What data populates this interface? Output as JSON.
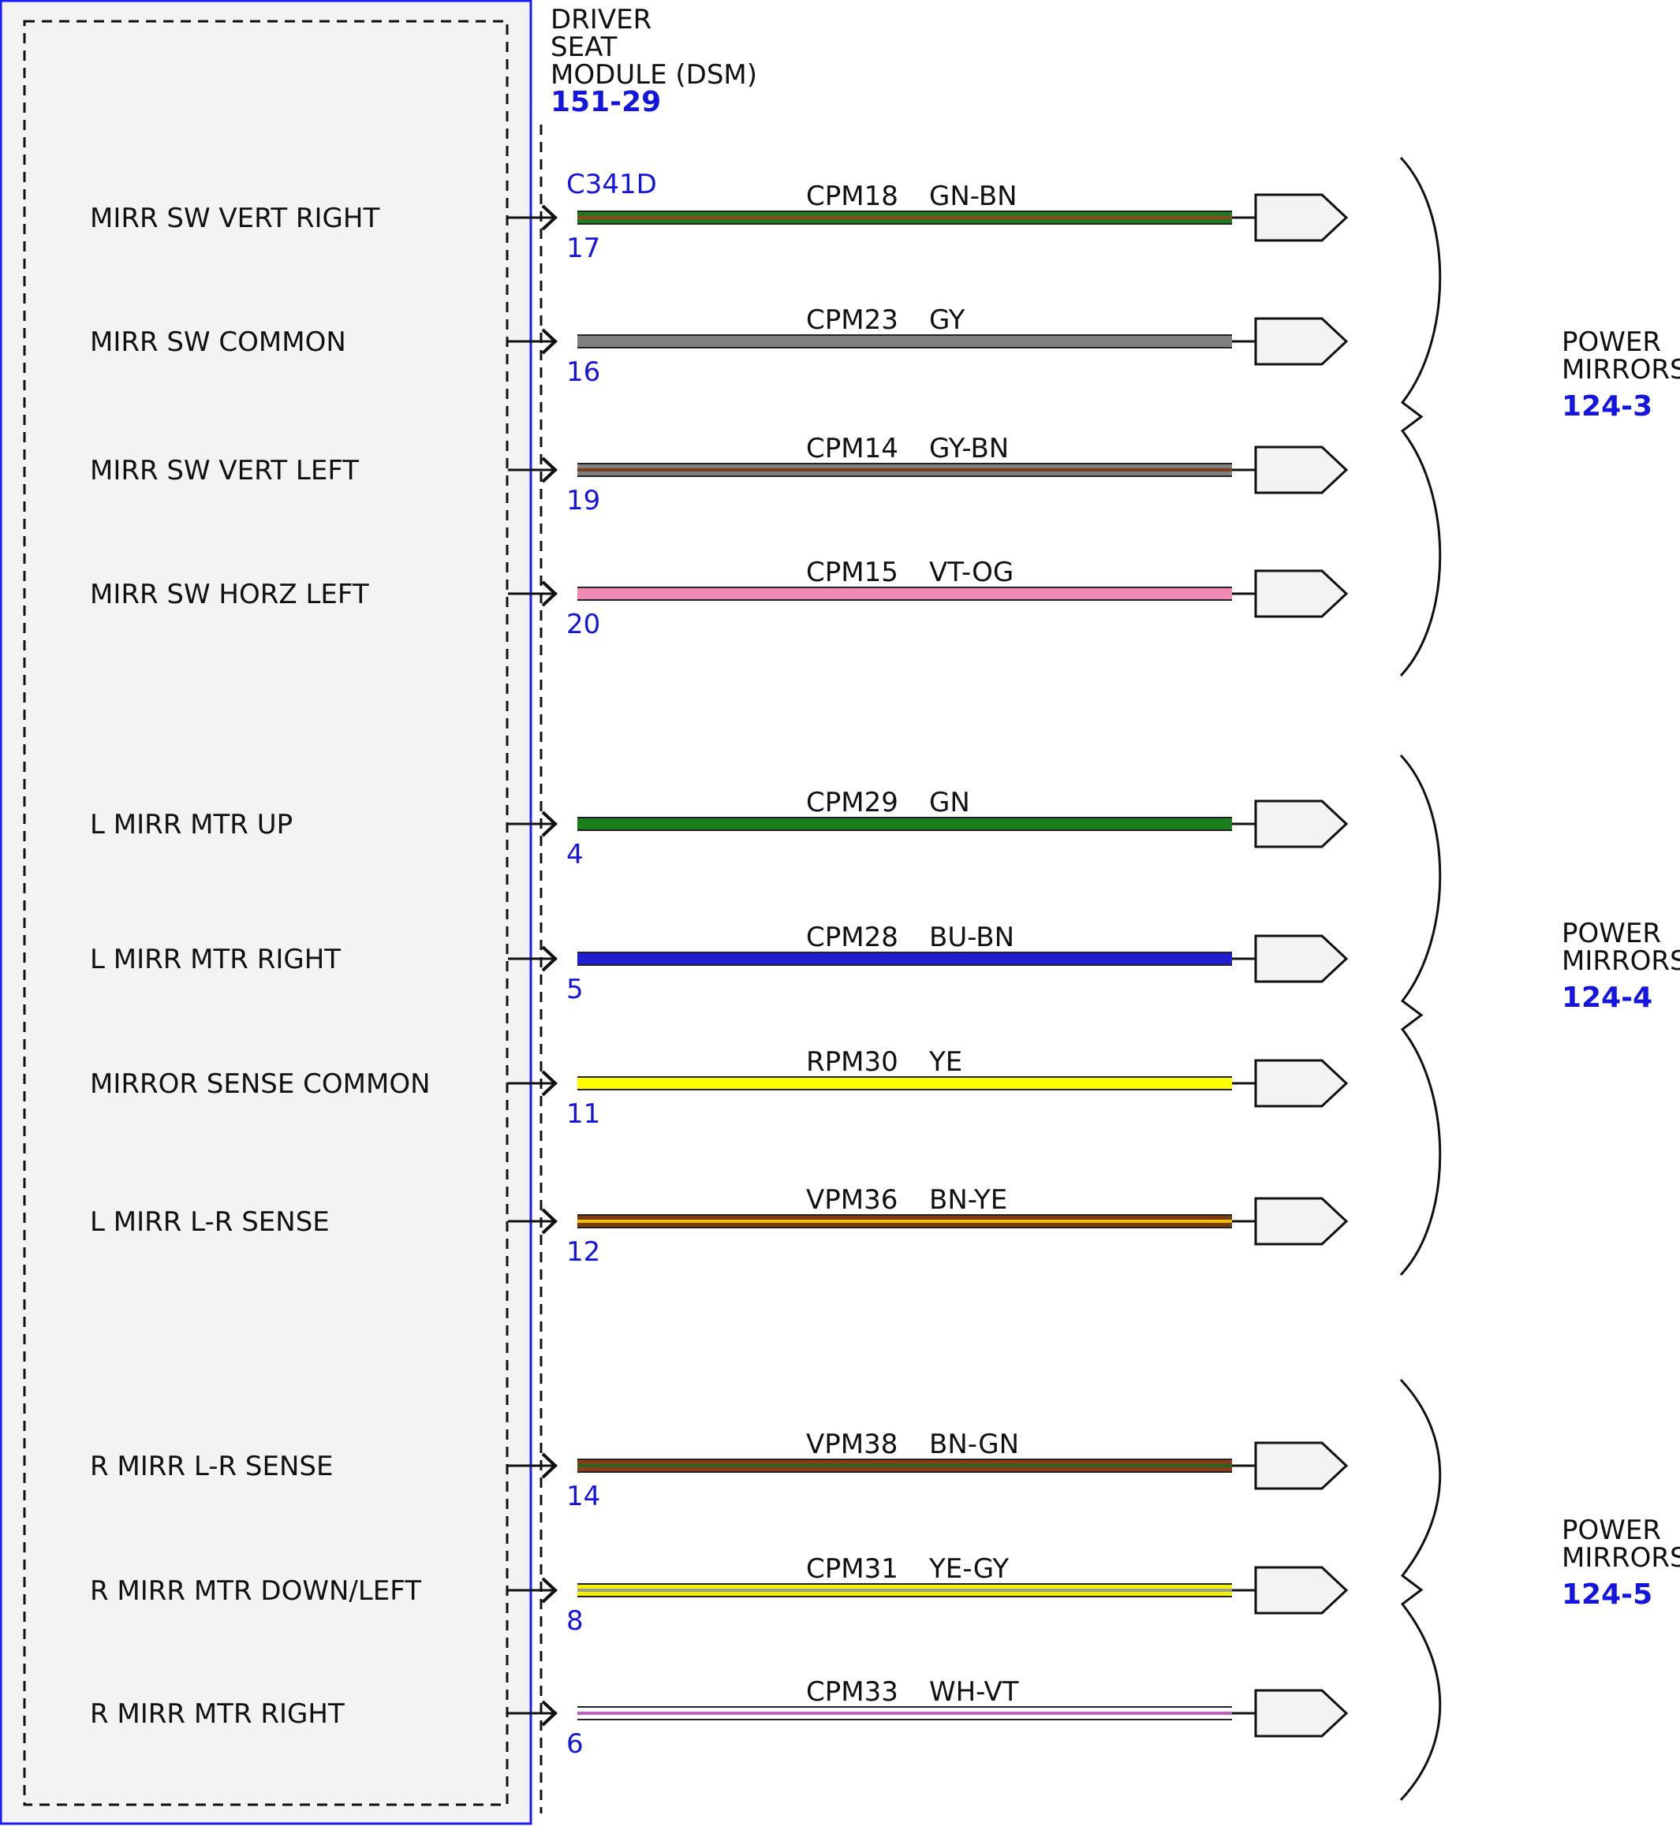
{
  "module": {
    "name_lines": [
      "DRIVER",
      "SEAT",
      "MODULE (DSM)"
    ],
    "ref": "151-29",
    "connector": "C341D"
  },
  "colors": {
    "module_fill": "#f3f3f3",
    "module_border": "#1a1aff",
    "pin_text": "#1515e0",
    "GN-BN": [
      "#1f7a1f",
      "#8a4a1e"
    ],
    "GY": [
      "#808080",
      "#808080"
    ],
    "GY-BN": [
      "#808080",
      "#7a3f1a"
    ],
    "VT-OG": [
      "#f08ab4",
      "#f08ab4"
    ],
    "GN": [
      "#1b7d1b",
      "#1b7d1b"
    ],
    "BU-BN": [
      "#1f1fd0",
      "#1f1fd0"
    ],
    "YE": [
      "#ffff00",
      "#ffff00"
    ],
    "BN-YE": [
      "#7a3a12",
      "#f0c000"
    ],
    "BN-GN": [
      "#8b3a1a",
      "#1f6a1f"
    ],
    "YE-GY": [
      "#f2f200",
      "#9a9a9a"
    ],
    "WH-VT": [
      "#ffffff",
      "#c060c0"
    ]
  },
  "circuits": [
    {
      "label": "MIRR SW VERT RIGHT",
      "pin": "17",
      "circuit": "CPM18",
      "color": "GN-BN"
    },
    {
      "label": "MIRR SW COMMON",
      "pin": "16",
      "circuit": "CPM23",
      "color": "GY"
    },
    {
      "label": "MIRR SW VERT LEFT",
      "pin": "19",
      "circuit": "CPM14",
      "color": "GY-BN"
    },
    {
      "label": "MIRR SW HORZ LEFT",
      "pin": "20",
      "circuit": "CPM15",
      "color": "VT-OG"
    },
    {
      "label": "L MIRR MTR UP",
      "pin": "4",
      "circuit": "CPM29",
      "color": "GN"
    },
    {
      "label": "L MIRR MTR RIGHT",
      "pin": "5",
      "circuit": "CPM28",
      "color": "BU-BN"
    },
    {
      "label": "MIRROR SENSE COMMON",
      "pin": "11",
      "circuit": "RPM30",
      "color": "YE"
    },
    {
      "label": "L MIRR L-R SENSE",
      "pin": "12",
      "circuit": "VPM36",
      "color": "BN-YE"
    },
    {
      "label": "R MIRR L-R SENSE",
      "pin": "14",
      "circuit": "VPM38",
      "color": "BN-GN"
    },
    {
      "label": "R MIRR MTR DOWN/LEFT",
      "pin": "8",
      "circuit": "CPM31",
      "color": "YE-GY"
    },
    {
      "label": "R MIRR MTR RIGHT",
      "pin": "6",
      "circuit": "CPM33",
      "color": "WH-VT"
    }
  ],
  "destinations": [
    {
      "name_lines": [
        "POWER",
        "MIRRORS"
      ],
      "ref": "124-3"
    },
    {
      "name_lines": [
        "POWER",
        "MIRRORS"
      ],
      "ref": "124-4"
    },
    {
      "name_lines": [
        "POWER",
        "MIRRORS"
      ],
      "ref": "124-5"
    }
  ]
}
